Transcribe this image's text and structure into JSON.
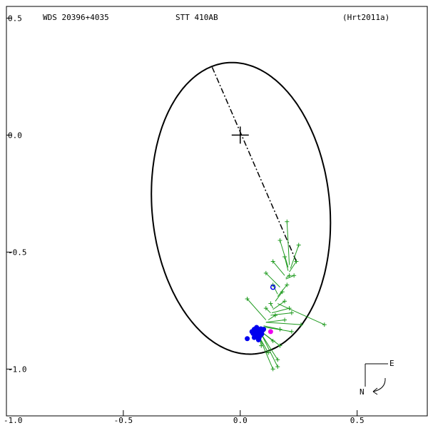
{
  "header": {
    "wds": "WDS 20396+4035",
    "pair": "STT 410AB",
    "reference": "(Hrt2011a)"
  },
  "compass": {
    "east": "E",
    "north": "N"
  },
  "chart_data": {
    "type": "scatter",
    "title": "STT 410AB",
    "xlim": [
      -1.0,
      0.8
    ],
    "ylim": [
      -1.2,
      0.55
    ],
    "x_ticks": [
      {
        "value": -1.0,
        "label": "-1.0"
      },
      {
        "value": -0.5,
        "label": "-0.5"
      },
      {
        "value": 0.0,
        "label": "0.0"
      },
      {
        "value": 0.5,
        "label": "0.5"
      }
    ],
    "y_ticks": [
      {
        "value": 0.5,
        "label": "0.5"
      },
      {
        "value": 0.0,
        "label": "0.0"
      },
      {
        "value": -0.5,
        "label": "-0.5"
      },
      {
        "value": -1.0,
        "label": "-1.0"
      }
    ],
    "primary": {
      "x": 0.0,
      "y": 0.0
    },
    "orbit_ellipse": {
      "center": [
        0.003,
        -0.313
      ],
      "semi_major": 0.625,
      "semi_minor": 0.38,
      "rotation_deg": 95.5
    },
    "line_of_nodes": {
      "from": [
        -0.12,
        0.29
      ],
      "to": [
        0.24,
        -0.54
      ]
    },
    "colors": {
      "orbit": "#000000",
      "observations": "#1e9a1e",
      "interferometric": "#0000ee",
      "highlight": "#ee00ee"
    },
    "series": [
      {
        "marker": "plus",
        "color": "#1e9a1e",
        "points": [
          {
            "obs": [
              0.2,
              -0.37
            ],
            "calc": [
              0.21,
              -0.555
            ]
          },
          {
            "obs": [
              0.17,
              -0.45
            ],
            "calc": [
              0.205,
              -0.565
            ]
          },
          {
            "obs": [
              0.25,
              -0.47
            ],
            "calc": [
              0.215,
              -0.57
            ]
          },
          {
            "obs": [
              0.19,
              -0.52
            ],
            "calc": [
              0.205,
              -0.58
            ]
          },
          {
            "obs": [
              0.24,
              -0.54
            ],
            "calc": [
              0.21,
              -0.585
            ]
          },
          {
            "obs": [
              0.14,
              -0.54
            ],
            "calc": [
              0.19,
              -0.6
            ]
          },
          {
            "obs": [
              0.21,
              -0.6
            ],
            "calc": [
              0.195,
              -0.61
            ]
          },
          {
            "obs": [
              0.23,
              -0.6
            ],
            "calc": [
              0.195,
              -0.615
            ]
          },
          {
            "obs": [
              0.11,
              -0.59
            ],
            "calc": [
              0.17,
              -0.65
            ]
          },
          {
            "obs": [
              0.14,
              -0.64
            ],
            "calc": [
              0.16,
              -0.68
            ]
          },
          {
            "obs": [
              0.2,
              -0.64
            ],
            "calc": [
              0.16,
              -0.69
            ]
          },
          {
            "obs": [
              0.18,
              -0.67
            ],
            "calc": [
              0.15,
              -0.71
            ]
          },
          {
            "obs": [
              0.13,
              -0.72
            ],
            "calc": [
              0.14,
              -0.74
            ]
          },
          {
            "obs": [
              0.19,
              -0.71
            ],
            "calc": [
              0.14,
              -0.745
            ]
          },
          {
            "obs": [
              0.11,
              -0.74
            ],
            "calc": [
              0.13,
              -0.76
            ]
          },
          {
            "obs": [
              0.21,
              -0.74
            ],
            "calc": [
              0.135,
              -0.76
            ]
          },
          {
            "obs": [
              0.22,
              -0.76
            ],
            "calc": [
              0.13,
              -0.77
            ]
          },
          {
            "obs": [
              0.03,
              -0.7
            ],
            "calc": [
              0.11,
              -0.79
            ]
          },
          {
            "obs": [
              0.36,
              -0.81
            ],
            "calc": [
              0.16,
              -0.72
            ]
          },
          {
            "obs": [
              0.15,
              -0.77
            ],
            "calc": [
              0.12,
              -0.79
            ]
          },
          {
            "obs": [
              0.19,
              -0.79
            ],
            "calc": [
              0.11,
              -0.8
            ]
          },
          {
            "obs": [
              0.26,
              -0.81
            ],
            "calc": [
              0.11,
              -0.8
            ]
          },
          {
            "obs": [
              0.17,
              -0.83
            ],
            "calc": [
              0.1,
              -0.815
            ]
          },
          {
            "obs": [
              0.22,
              -0.84
            ],
            "calc": [
              0.1,
              -0.82
            ]
          },
          {
            "obs": [
              0.14,
              -0.88
            ],
            "calc": [
              0.09,
              -0.84
            ]
          },
          {
            "obs": [
              0.09,
              -0.9
            ],
            "calc": [
              0.08,
              -0.85
            ]
          },
          {
            "obs": [
              0.17,
              -0.9
            ],
            "calc": [
              0.09,
              -0.84
            ]
          },
          {
            "obs": [
              0.12,
              -0.93
            ],
            "calc": [
              0.08,
              -0.86
            ]
          },
          {
            "obs": [
              0.16,
              -0.96
            ],
            "calc": [
              0.09,
              -0.85
            ]
          },
          {
            "obs": [
              0.16,
              -0.99
            ],
            "calc": [
              0.09,
              -0.85
            ]
          },
          {
            "obs": [
              0.14,
              -1.0
            ],
            "calc": [
              0.08,
              -0.86
            ]
          }
        ]
      },
      {
        "marker": "filled-circle",
        "color": "#0000ee",
        "points": [
          [
            0.06,
            -0.83
          ],
          [
            0.07,
            -0.845
          ],
          [
            0.08,
            -0.852
          ],
          [
            0.09,
            -0.84
          ],
          [
            0.065,
            -0.86
          ],
          [
            0.075,
            -0.835
          ],
          [
            0.085,
            -0.858
          ],
          [
            0.095,
            -0.835
          ],
          [
            0.055,
            -0.848
          ],
          [
            0.08,
            -0.868
          ],
          [
            0.07,
            -0.822
          ],
          [
            0.092,
            -0.85
          ],
          [
            0.06,
            -0.865
          ],
          [
            0.1,
            -0.83
          ],
          [
            0.078,
            -0.875
          ],
          [
            0.05,
            -0.84
          ],
          [
            0.088,
            -0.828
          ],
          [
            0.066,
            -0.838
          ],
          [
            0.083,
            -0.845
          ],
          [
            0.072,
            -0.856
          ],
          [
            0.03,
            -0.87
          ]
        ]
      },
      {
        "marker": "open-circle",
        "color": "#0000ee",
        "points": [
          [
            0.14,
            -0.65
          ]
        ]
      },
      {
        "marker": "filled-circle",
        "color": "#ee00ee",
        "points": [
          [
            0.13,
            -0.84
          ]
        ]
      }
    ]
  }
}
